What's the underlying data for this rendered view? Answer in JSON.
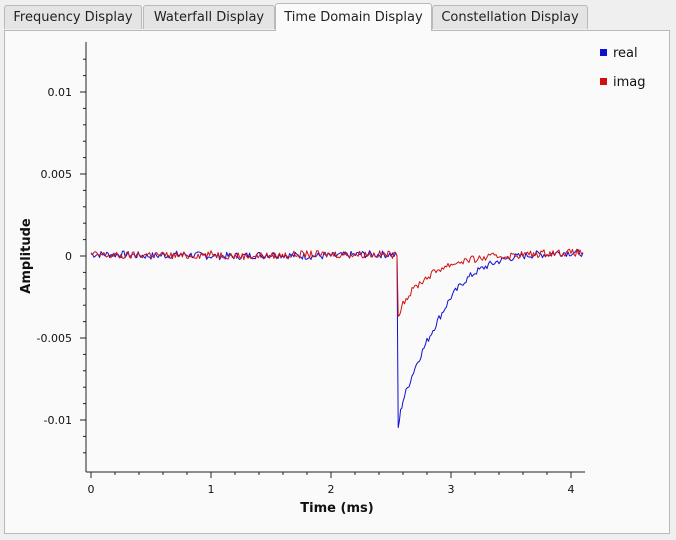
{
  "tabs": [
    {
      "label": "Frequency Display",
      "active": false
    },
    {
      "label": "Waterfall Display",
      "active": false
    },
    {
      "label": "Time Domain Display",
      "active": true
    },
    {
      "label": "Constellation Display",
      "active": false
    }
  ],
  "legend": [
    {
      "label": "real",
      "color": "#1010d0"
    },
    {
      "label": "imag",
      "color": "#d01010"
    }
  ],
  "chart_data": {
    "type": "line",
    "xlabel": "Time (ms)",
    "ylabel": "Amplitude",
    "xlim": [
      0,
      4.1
    ],
    "ylim": [
      -0.0128,
      0.0128
    ],
    "x_ticks": [
      0,
      1,
      2,
      3,
      4
    ],
    "x_tick_labels": [
      "0",
      "1",
      "2",
      "3",
      "4"
    ],
    "y_ticks": [
      0.01,
      0.005,
      0,
      -0.005,
      -0.01
    ],
    "y_tick_labels": [
      "0.01",
      "0.005",
      "0",
      "-0.005",
      "-0.01"
    ],
    "grid": false,
    "legend_position": "top-right",
    "series": [
      {
        "name": "real",
        "color": "#1010d0",
        "x": [
          0,
          0.25,
          0.5,
          0.75,
          1.0,
          1.25,
          1.5,
          1.75,
          2.0,
          2.25,
          2.5,
          2.55,
          2.56,
          2.58,
          2.6,
          2.65,
          2.7,
          2.8,
          2.9,
          3.0,
          3.1,
          3.2,
          3.3,
          3.4,
          3.5,
          3.6,
          3.7,
          3.8,
          3.9,
          4.0,
          4.1
        ],
        "y": [
          0.0001,
          0.0001,
          0.0,
          0.0001,
          0.0,
          0.0,
          0.0001,
          0.0,
          0.0,
          0.0001,
          0.0001,
          0.0,
          -0.0105,
          -0.0095,
          -0.0088,
          -0.0078,
          -0.0068,
          -0.0052,
          -0.0038,
          -0.0025,
          -0.0016,
          -0.001,
          -0.0006,
          -0.0003,
          -0.0001,
          0.0,
          0.0001,
          0.0001,
          0.0002,
          0.0002,
          0.0002
        ]
      },
      {
        "name": "imag",
        "color": "#d01010",
        "x": [
          0,
          0.25,
          0.5,
          0.75,
          1.0,
          1.25,
          1.5,
          1.75,
          2.0,
          2.25,
          2.5,
          2.55,
          2.56,
          2.58,
          2.6,
          2.65,
          2.7,
          2.8,
          2.9,
          3.0,
          3.1,
          3.2,
          3.3,
          3.4,
          3.5,
          3.6,
          3.7,
          3.8,
          3.9,
          4.0,
          4.1
        ],
        "y": [
          0.0001,
          0.0,
          0.0001,
          0.0,
          0.0001,
          0.0,
          0.0,
          0.0001,
          0.0001,
          0.0001,
          0.0001,
          0.0,
          -0.0036,
          -0.0032,
          -0.0028,
          -0.0024,
          -0.0019,
          -0.0013,
          -0.0008,
          -0.0005,
          -0.0003,
          -0.0002,
          -0.0001,
          0.0,
          0.0,
          0.0001,
          0.0001,
          0.0002,
          0.0002,
          0.0002,
          0.0002
        ]
      }
    ]
  }
}
